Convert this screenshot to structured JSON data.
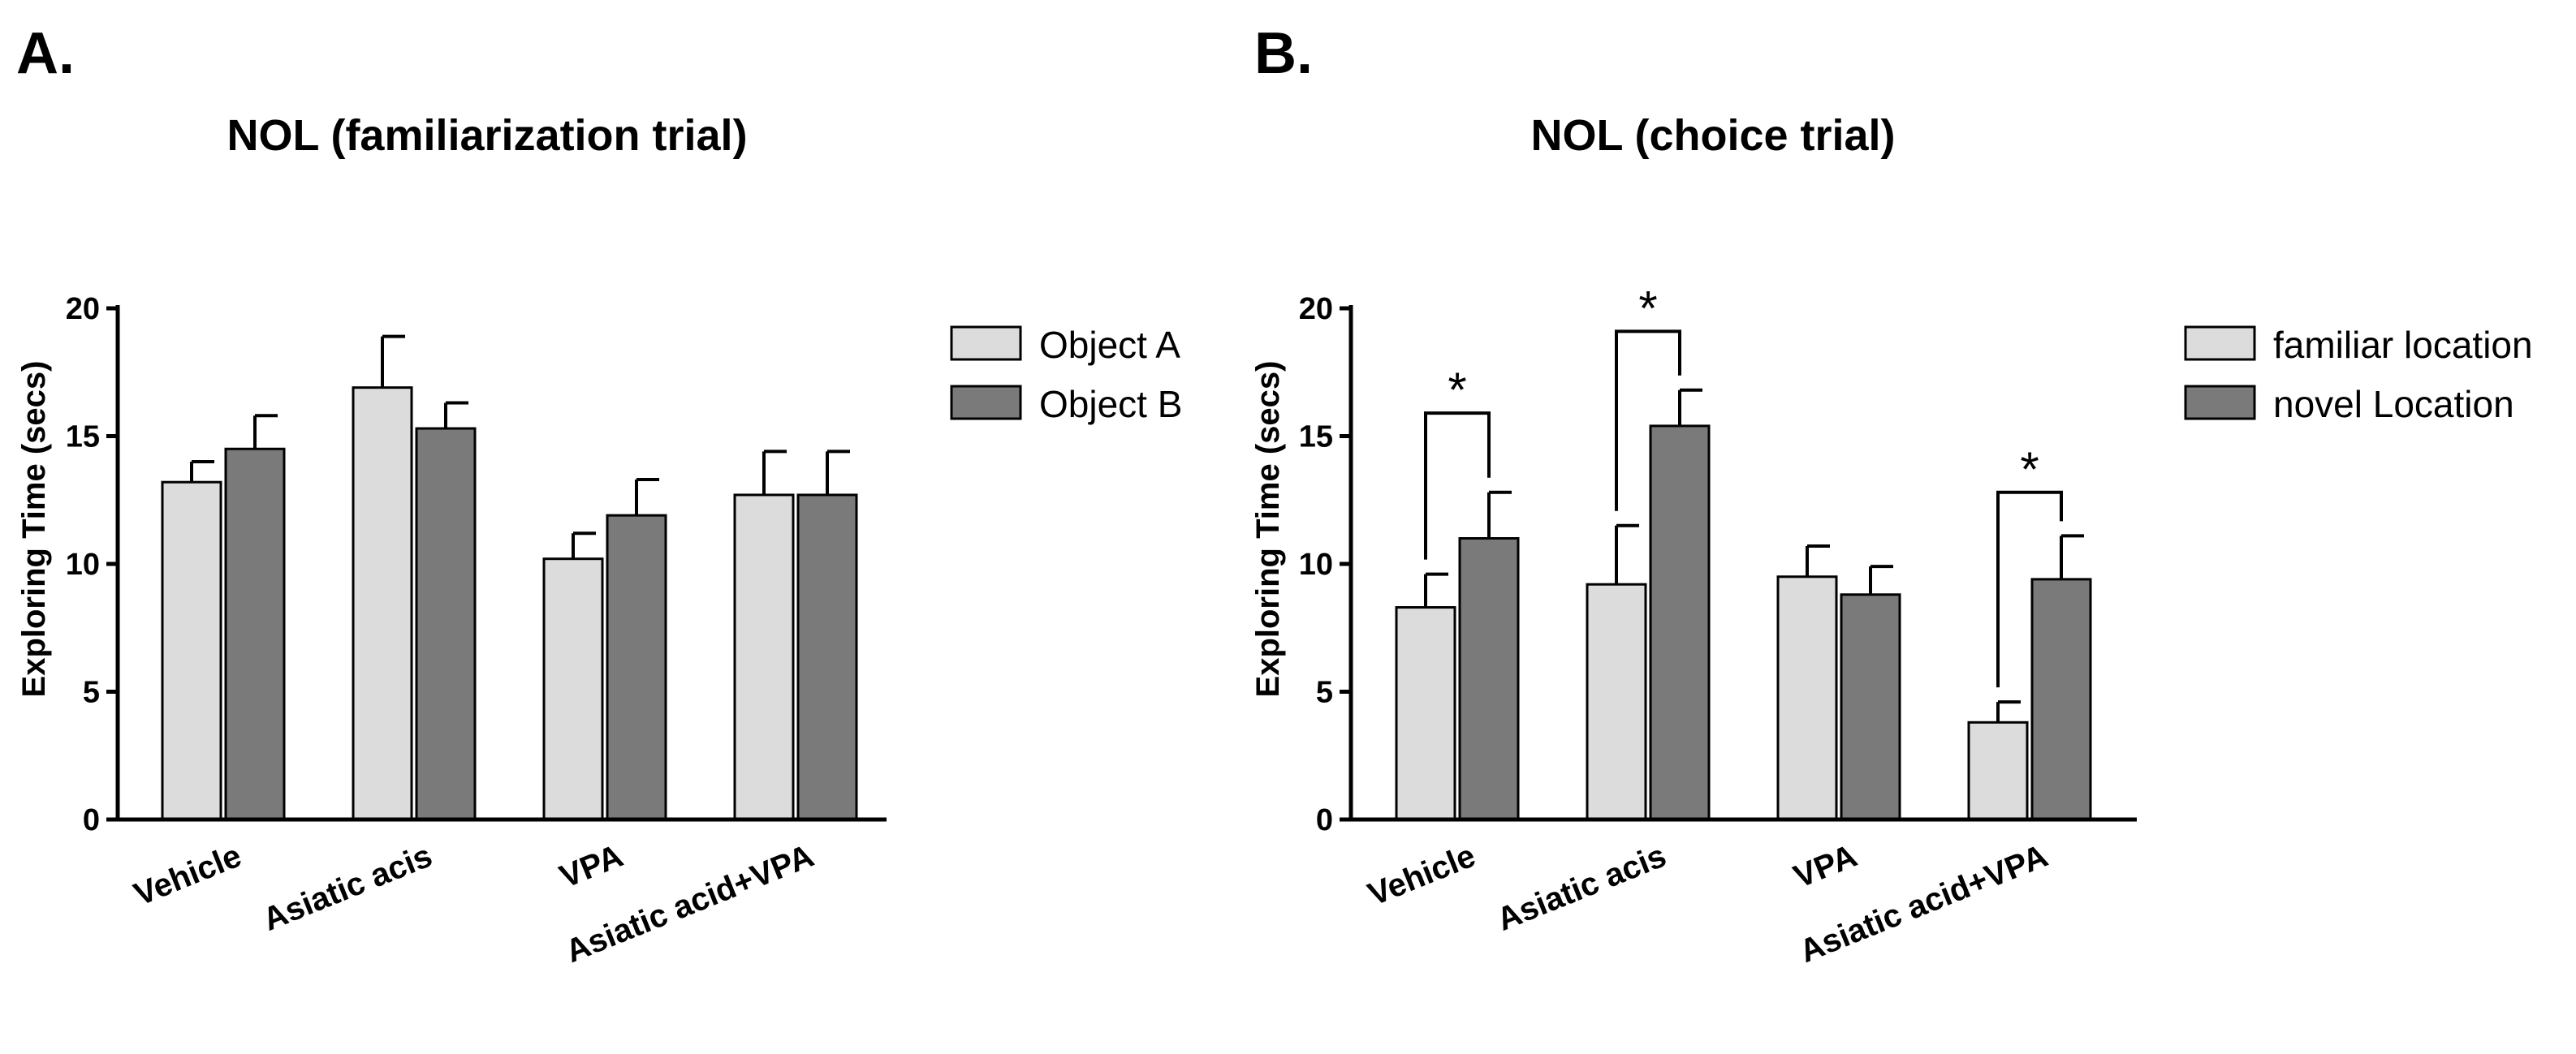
{
  "panels": [
    {
      "panel_label": "A.",
      "chart_data": {
        "type": "bar",
        "title": "NOL (familiarization trial)",
        "xlabel": "",
        "ylabel": "Exploring Time (secs)",
        "ylim": [
          0,
          20
        ],
        "yticks": [
          0,
          5,
          10,
          15,
          20
        ],
        "categories": [
          "Vehicle",
          "Asiatic acis",
          "VPA",
          "Asiatic acid+VPA"
        ],
        "series": [
          {
            "name": "Object A",
            "color": "#dcdcdc",
            "values": [
              13.2,
              16.9,
              10.2,
              12.7
            ],
            "errors": [
              0.8,
              2.0,
              1.0,
              1.7
            ]
          },
          {
            "name": "Object B",
            "color": "#7a7a7a",
            "values": [
              14.5,
              15.3,
              11.9,
              12.7
            ],
            "errors": [
              1.3,
              1.0,
              1.4,
              1.7
            ]
          }
        ],
        "significance": [],
        "legend": "top-right"
      }
    },
    {
      "panel_label": "B.",
      "chart_data": {
        "type": "bar",
        "title": "NOL (choice trial)",
        "xlabel": "",
        "ylabel": "Exploring Time (secs)",
        "ylim": [
          0,
          20
        ],
        "yticks": [
          0,
          5,
          10,
          15,
          20
        ],
        "categories": [
          "Vehicle",
          "Asiatic acis",
          "VPA",
          "Asiatic acid+VPA"
        ],
        "series": [
          {
            "name": "familiar location",
            "color": "#dcdcdc",
            "values": [
              8.3,
              9.2,
              9.5,
              3.8
            ],
            "errors": [
              1.3,
              2.3,
              1.2,
              0.8
            ]
          },
          {
            "name": "novel Location",
            "color": "#7a7a7a",
            "values": [
              11.0,
              15.4,
              8.8,
              9.4
            ],
            "errors": [
              1.8,
              1.4,
              1.1,
              1.7
            ]
          }
        ],
        "significance": [
          {
            "category_index": 0,
            "label": "*",
            "bracket_y": 15.9
          },
          {
            "category_index": 1,
            "label": "*",
            "bracket_y": 19.1
          },
          {
            "category_index": 3,
            "label": "*",
            "bracket_y": 12.8
          }
        ],
        "legend": "top-right"
      }
    }
  ]
}
